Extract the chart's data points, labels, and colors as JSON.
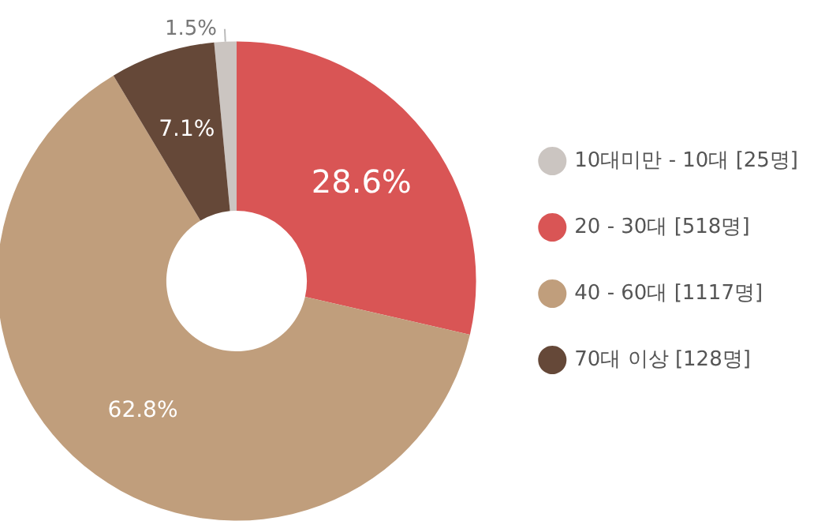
{
  "chart_data": {
    "type": "donut",
    "categories": [
      "10대미만 - 10대 [25명]",
      "20 - 30대 [518명]",
      "40 - 60대 [1117명]",
      "70대 이상 [128명]"
    ],
    "values": [
      1.5,
      28.6,
      62.8,
      7.1
    ],
    "value_labels": [
      "1.5%",
      "28.6%",
      "62.8%",
      "7.1%"
    ],
    "colors": [
      "#cbc5c1",
      "#d95555",
      "#c09e7c",
      "#654838"
    ],
    "legend": "right"
  }
}
